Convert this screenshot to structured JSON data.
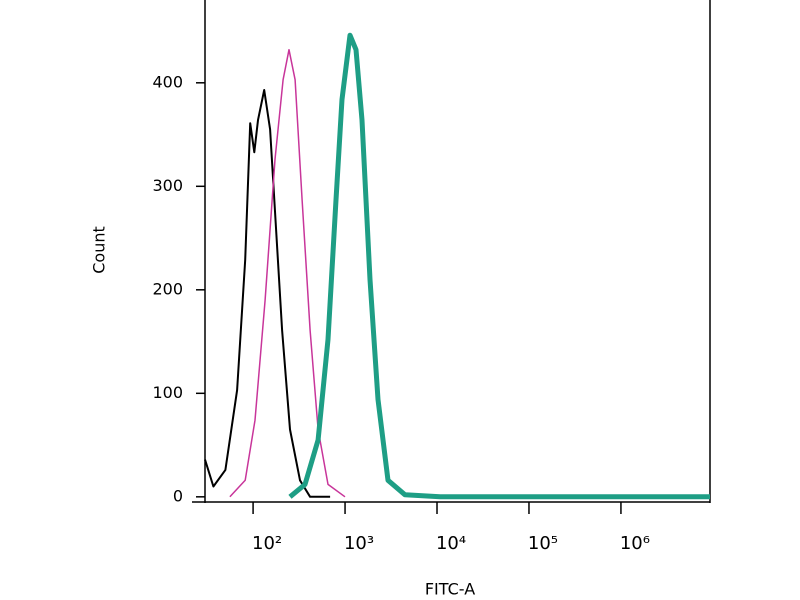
{
  "chart_data": {
    "type": "line",
    "x_label": "FITC-A",
    "y_label": "Count",
    "xscale": "log",
    "xlim": [
      30,
      9300000
    ],
    "ylim": [
      -5,
      480
    ],
    "xticks": [
      {
        "value": 100,
        "label": "10²"
      },
      {
        "value": 1000,
        "label": "10³"
      },
      {
        "value": 10000,
        "label": "10⁴"
      },
      {
        "value": 100000,
        "label": "10⁵"
      },
      {
        "value": 1000000,
        "label": "10⁶"
      }
    ],
    "yticks": [
      0,
      100,
      200,
      300,
      400
    ],
    "series": [
      {
        "color": "#000000",
        "width": 2,
        "x": [
          30,
          37,
          50,
          67,
          82,
          93,
          103,
          113,
          132,
          153,
          178,
          207,
          252,
          324,
          417,
          687
        ],
        "values": [
          36,
          10,
          26,
          103,
          229,
          361,
          333,
          364,
          393,
          355,
          258,
          161,
          65,
          16,
          0,
          0
        ]
      },
      {
        "color": "#c8359a",
        "width": 1.5,
        "x": [
          56,
          82,
          105,
          135,
          173,
          212,
          246,
          286,
          341,
          417,
          509,
          653,
          1000
        ],
        "values": [
          0,
          16,
          74,
          190,
          326,
          403,
          432,
          403,
          287,
          161,
          65,
          12,
          0
        ]
      },
      {
        "color": "#1e9e85",
        "width": 5,
        "x": [
          252,
          367,
          509,
          653,
          798,
          927,
          1132,
          1315,
          1528,
          1866,
          2280,
          2930,
          4490,
          10800,
          9300000
        ],
        "values": [
          0,
          12,
          55,
          152,
          287,
          384,
          446,
          432,
          364,
          210,
          94,
          16,
          2,
          0,
          0
        ]
      }
    ]
  }
}
